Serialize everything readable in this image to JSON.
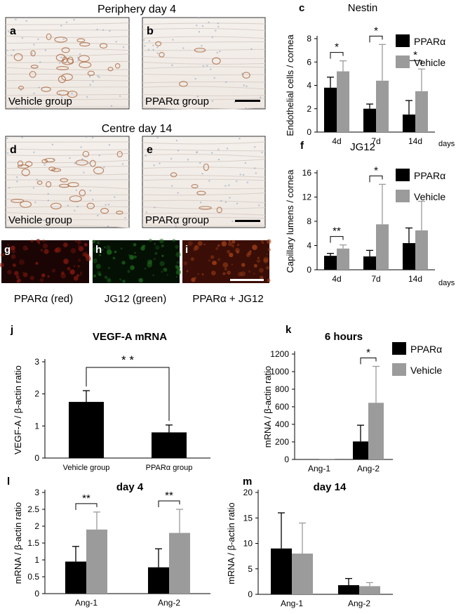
{
  "headers": {
    "periphery": "Periphery day 4",
    "centre": "Centre day 14"
  },
  "micrographs": [
    {
      "letter": "a",
      "caption": "Vehicle group",
      "kind": "vessels-dense"
    },
    {
      "letter": "b",
      "caption": "PPARα group",
      "kind": "vessels-sparse"
    },
    {
      "letter": "d",
      "caption": "Vehicle group",
      "kind": "vessels-dense"
    },
    {
      "letter": "e",
      "caption": "PPARα group",
      "kind": "vessels-sparse"
    }
  ],
  "fluorescence": [
    {
      "letter": "g",
      "caption": "PPARα (red)",
      "color": "#8a1a10"
    },
    {
      "letter": "h",
      "caption": "JG12 (green)",
      "color": "#1e6b1e"
    },
    {
      "letter": "i",
      "caption": "PPARα  + JG12",
      "color": "#a0401a"
    }
  ],
  "colors": {
    "ppar": "#000000",
    "vehicle": "#9b9b9b",
    "vehicle_single": "#000000"
  },
  "chart_data": [
    {
      "panel": "c",
      "type": "bar",
      "title": "Nestin",
      "ylabel": "Endothelial cells / cornea",
      "xlabel_right": "days",
      "categories": [
        "4d",
        "7d",
        "14d"
      ],
      "ylim": [
        0,
        8
      ],
      "yticks": [
        "0",
        "2",
        "4",
        "6",
        "8"
      ],
      "legend": [
        "PPARα",
        "Vehicle"
      ],
      "series": [
        {
          "name": "PPARα",
          "values": [
            3.8,
            2.0,
            1.5
          ],
          "errors": [
            0.9,
            0.4,
            1.2
          ]
        },
        {
          "name": "Vehicle",
          "values": [
            5.2,
            4.4,
            3.5
          ],
          "errors": [
            0.9,
            3.1,
            1.9
          ]
        }
      ],
      "significance": [
        {
          "category": 0,
          "label": "*"
        },
        {
          "category": 1,
          "label": "*"
        },
        {
          "category": 2,
          "label": "*"
        }
      ]
    },
    {
      "panel": "f",
      "type": "bar",
      "title": "JG12",
      "ylabel": "Capillary lumens / cornea",
      "xlabel_right": "days",
      "categories": [
        "4d",
        "7d",
        "14d"
      ],
      "ylim": [
        0,
        16
      ],
      "yticks": [
        "0",
        "4",
        "8",
        "12",
        "16"
      ],
      "legend": [
        "PPARα",
        "Vehicle"
      ],
      "series": [
        {
          "name": "PPARα",
          "values": [
            2.3,
            2.2,
            4.4
          ],
          "errors": [
            0.4,
            1.0,
            2.5
          ]
        },
        {
          "name": "Vehicle",
          "values": [
            3.5,
            7.5,
            6.5
          ],
          "errors": [
            0.6,
            6.6,
            4.8
          ]
        }
      ],
      "significance": [
        {
          "category": 0,
          "label": "**"
        },
        {
          "category": 1,
          "label": "*"
        }
      ]
    },
    {
      "panel": "j",
      "type": "bar",
      "title": "VEGF-A mRNA",
      "ylabel": "VEGF-A / β-actin ratio",
      "categories": [
        "Vehicle group",
        "PPARα group"
      ],
      "ylim": [
        0,
        3
      ],
      "yticks": [
        "0",
        "1",
        "2",
        "3"
      ],
      "legend": [],
      "series": [
        {
          "name": "",
          "values": [
            1.75,
            0.8
          ],
          "errors": [
            0.35,
            0.23
          ]
        }
      ],
      "significance": [
        {
          "between": [
            0,
            1
          ],
          "label": "* *"
        }
      ]
    },
    {
      "panel": "k",
      "type": "bar",
      "title": "6 hours",
      "ylabel": "mRNA / β-actin ratio",
      "categories": [
        "Ang-1",
        "Ang-2"
      ],
      "ylim": [
        0,
        1200
      ],
      "yticks": [
        "0",
        "200",
        "400",
        "600",
        "800",
        "1000",
        "1200"
      ],
      "legend": [
        "PPARα",
        "Vehicle"
      ],
      "series": [
        {
          "name": "PPARα",
          "values": [
            2,
            205
          ],
          "errors": [
            0,
            185
          ]
        },
        {
          "name": "Vehicle",
          "values": [
            2,
            645
          ],
          "errors": [
            0,
            415
          ]
        }
      ],
      "significance": [
        {
          "category": 1,
          "label": "*"
        }
      ]
    },
    {
      "panel": "l",
      "type": "bar",
      "title": "day 4",
      "ylabel": "mRNA / β-actin ratio",
      "categories": [
        "Ang-1",
        "Ang-2"
      ],
      "ylim": [
        0,
        3
      ],
      "yticks": [
        "0",
        "0.5",
        "1",
        "1.5",
        "2",
        "2.5",
        "3"
      ],
      "legend": [],
      "series": [
        {
          "name": "PPARα",
          "values": [
            0.95,
            0.78
          ],
          "errors": [
            0.45,
            0.55
          ]
        },
        {
          "name": "Vehicle",
          "values": [
            1.9,
            1.8
          ],
          "errors": [
            0.52,
            0.7
          ]
        }
      ],
      "significance": [
        {
          "category": 0,
          "label": "**"
        },
        {
          "category": 1,
          "label": "**"
        }
      ]
    },
    {
      "panel": "m",
      "type": "bar",
      "title": "day 14",
      "ylabel": "mRNA / β-actin ratio",
      "categories": [
        "Ang-1",
        "Ang-2"
      ],
      "ylim": [
        0,
        20
      ],
      "yticks": [
        "0",
        "5",
        "10",
        "15",
        "20"
      ],
      "legend": [],
      "series": [
        {
          "name": "PPARα",
          "values": [
            9.0,
            1.8
          ],
          "errors": [
            7.0,
            1.3
          ]
        },
        {
          "name": "Vehicle",
          "values": [
            8.0,
            1.6
          ],
          "errors": [
            6.0,
            0.7
          ]
        }
      ],
      "significance": []
    }
  ]
}
